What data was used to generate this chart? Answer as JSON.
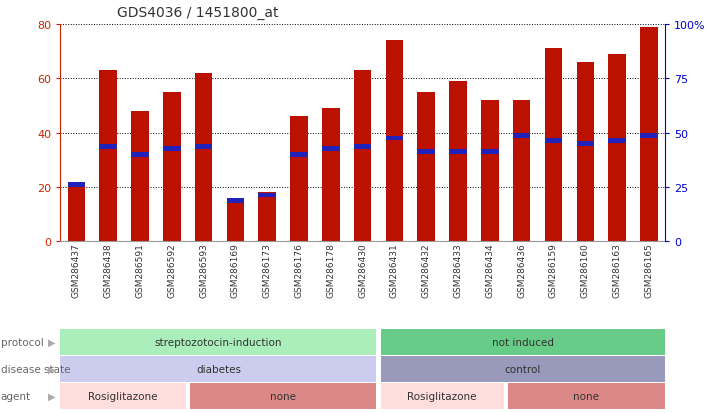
{
  "title": "GDS4036 / 1451800_at",
  "samples": [
    "GSM286437",
    "GSM286438",
    "GSM286591",
    "GSM286592",
    "GSM286593",
    "GSM286169",
    "GSM286173",
    "GSM286176",
    "GSM286178",
    "GSM286430",
    "GSM286431",
    "GSM286432",
    "GSM286433",
    "GSM286434",
    "GSM286436",
    "GSM286159",
    "GSM286160",
    "GSM286163",
    "GSM286165"
  ],
  "count_values": [
    21,
    63,
    48,
    55,
    62,
    15,
    18,
    46,
    49,
    63,
    74,
    55,
    59,
    52,
    52,
    71,
    66,
    69,
    79
  ],
  "percentile_values": [
    21,
    35,
    32,
    34,
    35,
    15,
    17,
    32,
    34,
    35,
    38,
    33,
    33,
    33,
    39,
    37,
    36,
    37,
    39
  ],
  "ylim_left": [
    0,
    80
  ],
  "ylim_right": [
    0,
    100
  ],
  "yticks_left": [
    0,
    20,
    40,
    60,
    80
  ],
  "yticks_right": [
    0,
    25,
    50,
    75,
    100
  ],
  "ytick_labels_right": [
    "0",
    "25",
    "50",
    "75",
    "100%"
  ],
  "bar_color": "#bb1100",
  "percentile_color": "#2222bb",
  "background_color": "#ffffff",
  "title_color": "#333333",
  "axis_color_left": "#cc2200",
  "axis_color_right": "#0000cc",
  "protocol_labels": [
    "streptozotocin-induction",
    "not induced"
  ],
  "protocol_color_1": "#aaeebb",
  "protocol_color_2": "#66cc88",
  "disease_labels": [
    "diabetes",
    "control"
  ],
  "disease_color_1": "#ccccee",
  "disease_color_2": "#9999bb",
  "agent_labels": [
    "Rosiglitazone",
    "none",
    "Rosiglitazone",
    "none"
  ],
  "agent_color_1": "#ffdddd",
  "agent_color_2": "#dd8888",
  "row_label_color": "#666666",
  "legend_count_color": "#bb1100",
  "legend_percentile_color": "#2222bb"
}
